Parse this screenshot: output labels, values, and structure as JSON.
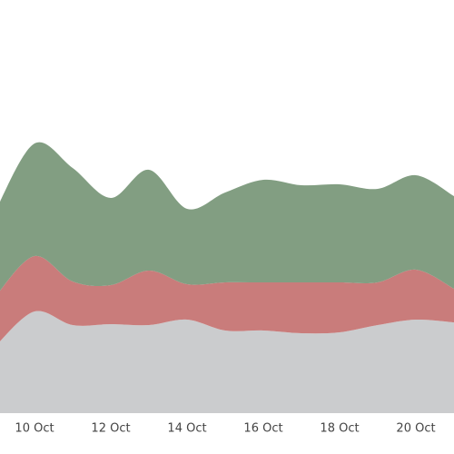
{
  "chart_data": {
    "type": "area",
    "stacked": true,
    "categories": [
      null,
      "10 Oct",
      null,
      "12 Oct",
      null,
      "14 Oct",
      null,
      "16 Oct",
      null,
      "18 Oct",
      null,
      "20 Oct",
      null
    ],
    "ylim": [
      0,
      455
    ],
    "grid": false,
    "series": [
      {
        "color": "#cbccce",
        "values": [
          75,
          112,
          97,
          98,
          97,
          103,
          91,
          91,
          88,
          89,
          97,
          103,
          100
        ]
      },
      {
        "color": "#c97c7b",
        "values": [
          55,
          61,
          48,
          43,
          60,
          39,
          53,
          53,
          56,
          55,
          47,
          55,
          37
        ]
      },
      {
        "color": "#829e82",
        "values": [
          95,
          124,
          125,
          96,
          111,
          83,
          99,
          113,
          107,
          108,
          103,
          104,
          102
        ]
      }
    ]
  }
}
